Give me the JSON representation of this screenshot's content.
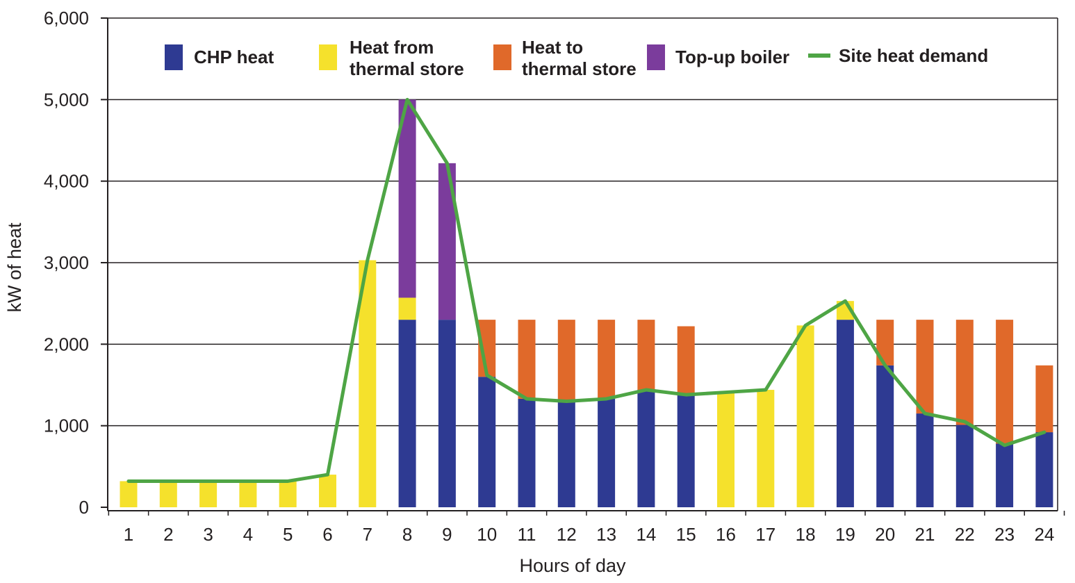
{
  "chart_data": {
    "type": "bar",
    "stacked": true,
    "xlabel": "Hours of day",
    "ylabel": "kW of heat",
    "ylim": [
      0,
      6000
    ],
    "yticks": [
      "0",
      "1,000",
      "2,000",
      "3,000",
      "4,000",
      "5,000",
      "6,000"
    ],
    "grid": true,
    "legend_position": "top",
    "categories": [
      "1",
      "2",
      "3",
      "4",
      "5",
      "6",
      "7",
      "8",
      "9",
      "10",
      "11",
      "12",
      "13",
      "14",
      "15",
      "16",
      "17",
      "18",
      "19",
      "20",
      "21",
      "22",
      "23",
      "24"
    ],
    "series": [
      {
        "key": "chp",
        "name_lines": [
          "CHP heat"
        ],
        "color": "#2e3a92",
        "values": [
          0,
          0,
          0,
          0,
          0,
          0,
          0,
          2300,
          2300,
          1600,
          1330,
          1300,
          1330,
          1440,
          1380,
          0,
          0,
          0,
          2300,
          1740,
          1150,
          1010,
          780,
          920
        ]
      },
      {
        "key": "from_store",
        "name_lines": [
          "Heat from",
          "thermal store"
        ],
        "color": "#f5e12c",
        "values": [
          320,
          320,
          320,
          320,
          320,
          400,
          3030,
          270,
          0,
          0,
          0,
          0,
          0,
          0,
          0,
          1410,
          1440,
          2230,
          230,
          0,
          0,
          0,
          0,
          0
        ]
      },
      {
        "key": "to_store",
        "name_lines": [
          "Heat to",
          "thermal store"
        ],
        "color": "#e0692a",
        "values": [
          0,
          0,
          0,
          0,
          0,
          0,
          0,
          0,
          0,
          700,
          970,
          1000,
          970,
          860,
          840,
          0,
          0,
          0,
          0,
          560,
          1150,
          1290,
          1520,
          820
        ]
      },
      {
        "key": "boiler",
        "name_lines": [
          "Top-up boiler"
        ],
        "color": "#7b3c9c",
        "values": [
          0,
          0,
          0,
          0,
          0,
          0,
          0,
          2430,
          1920,
          0,
          0,
          0,
          0,
          0,
          0,
          0,
          0,
          0,
          0,
          0,
          0,
          0,
          0,
          0
        ]
      }
    ],
    "line_series": {
      "key": "demand",
      "name": "Site heat demand",
      "color": "#4ea545",
      "values": [
        320,
        320,
        320,
        320,
        320,
        400,
        3030,
        5000,
        4220,
        1620,
        1330,
        1300,
        1330,
        1440,
        1380,
        1410,
        1440,
        2230,
        2530,
        1740,
        1150,
        1050,
        760,
        920
      ]
    }
  }
}
